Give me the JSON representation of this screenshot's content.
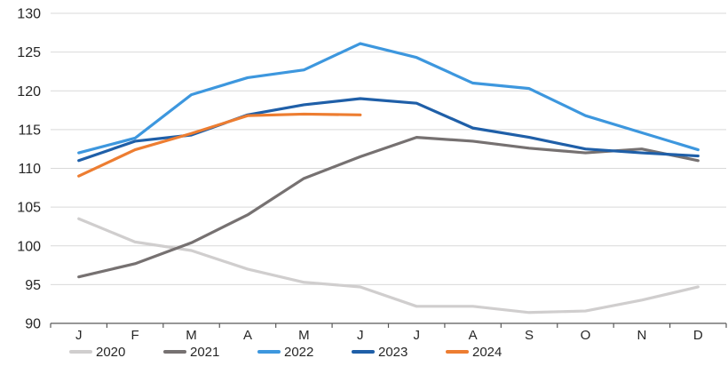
{
  "chart_data": {
    "type": "line",
    "title": "",
    "xlabel": "",
    "ylabel": "",
    "grid": true,
    "legend_position": "bottom",
    "x_categories": [
      "J",
      "F",
      "M",
      "A",
      "M",
      "J",
      "J",
      "A",
      "S",
      "O",
      "N",
      "D"
    ],
    "y_axis": {
      "min": 90,
      "max": 130,
      "step": 5,
      "tick_labels": [
        "90",
        "95",
        "100",
        "105",
        "110",
        "115",
        "120",
        "125",
        "130"
      ]
    },
    "series": [
      {
        "name": "2020",
        "color": "#D0CECE",
        "values": [
          103.5,
          100.5,
          99.4,
          97.0,
          95.3,
          94.7,
          92.2,
          92.2,
          91.4,
          91.6,
          93.0,
          94.7
        ]
      },
      {
        "name": "2021",
        "color": "#767171",
        "values": [
          96.0,
          97.7,
          100.4,
          104.0,
          108.7,
          111.5,
          114.0,
          113.5,
          112.6,
          112.0,
          112.5,
          111.0
        ]
      },
      {
        "name": "2022",
        "color": "#3D97DE",
        "values": [
          112.0,
          113.9,
          119.5,
          121.7,
          122.7,
          126.1,
          124.3,
          121.0,
          120.3,
          116.8,
          114.6,
          112.4
        ]
      },
      {
        "name": "2023",
        "color": "#1F5FA8",
        "values": [
          111.0,
          113.5,
          114.3,
          116.9,
          118.2,
          119.0,
          118.4,
          115.2,
          114.0,
          112.5,
          112.0,
          111.6
        ]
      },
      {
        "name": "2024",
        "color": "#ED7D31",
        "values": [
          109.0,
          112.4,
          114.5,
          116.8,
          117.0,
          116.9,
          null,
          null,
          null,
          null,
          null,
          null
        ]
      }
    ],
    "style": {
      "grid_color": "#D9D9D9",
      "axis_color": "#595959",
      "text_color": "#262626",
      "line_width": 3.2
    }
  }
}
